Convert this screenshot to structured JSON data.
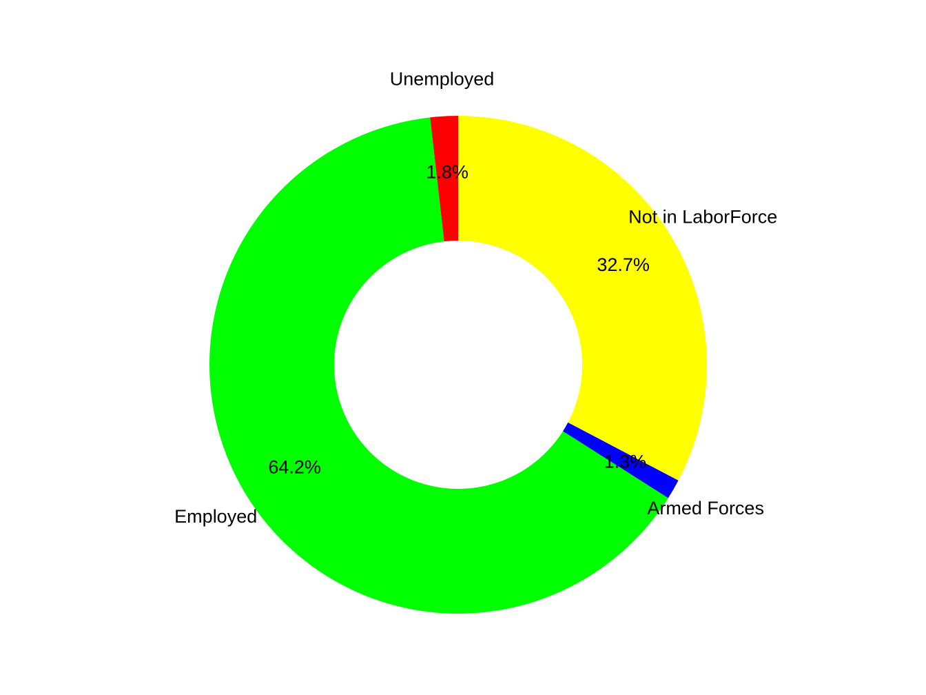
{
  "chart_data": {
    "type": "pie",
    "donut": true,
    "title": "",
    "categories": [
      "Not in LaborForce",
      "Armed Forces",
      "Employed",
      "Unemployed"
    ],
    "values": [
      32.7,
      1.3,
      64.2,
      1.8
    ],
    "value_labels": [
      "32.7%",
      "1.3%",
      "64.2%",
      "1.8%"
    ],
    "colors": [
      "#FFFF00",
      "#0000FF",
      "#00FF00",
      "#FF0000"
    ],
    "legend": "none",
    "grid": false
  }
}
